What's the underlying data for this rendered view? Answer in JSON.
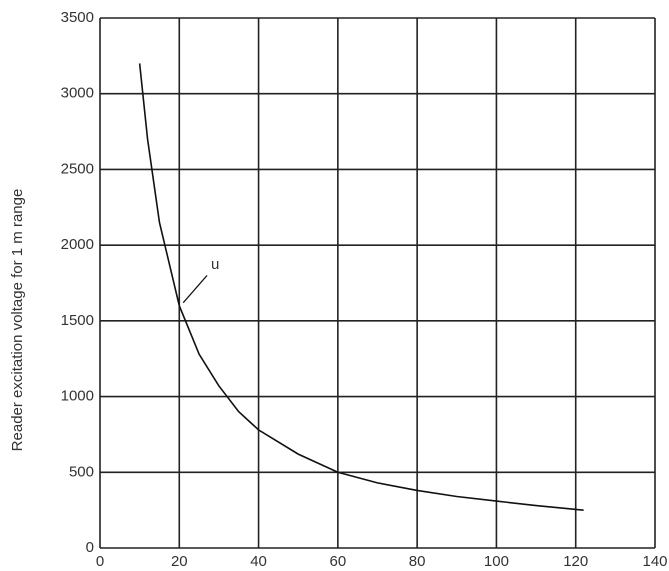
{
  "chart_data": {
    "type": "line",
    "y_label": "Reader excitation voltage for 1 m range",
    "annotation": "u",
    "x": [
      10,
      12,
      15,
      20,
      25,
      30,
      35,
      40,
      50,
      60,
      70,
      80,
      90,
      100,
      110,
      122
    ],
    "series": [
      {
        "color": "#111111",
        "values": [
          3200,
          2700,
          2150,
          1600,
          1280,
          1070,
          900,
          780,
          620,
          500,
          430,
          380,
          340,
          310,
          280,
          250
        ]
      }
    ],
    "xlim": [
      0,
      140
    ],
    "xticks": [
      0,
      20,
      40,
      60,
      80,
      100,
      120,
      140
    ],
    "ylim": [
      0,
      3500
    ],
    "yticks": [
      0,
      500,
      1000,
      1500,
      2000,
      2500,
      3000,
      3500
    ],
    "grid": true
  }
}
